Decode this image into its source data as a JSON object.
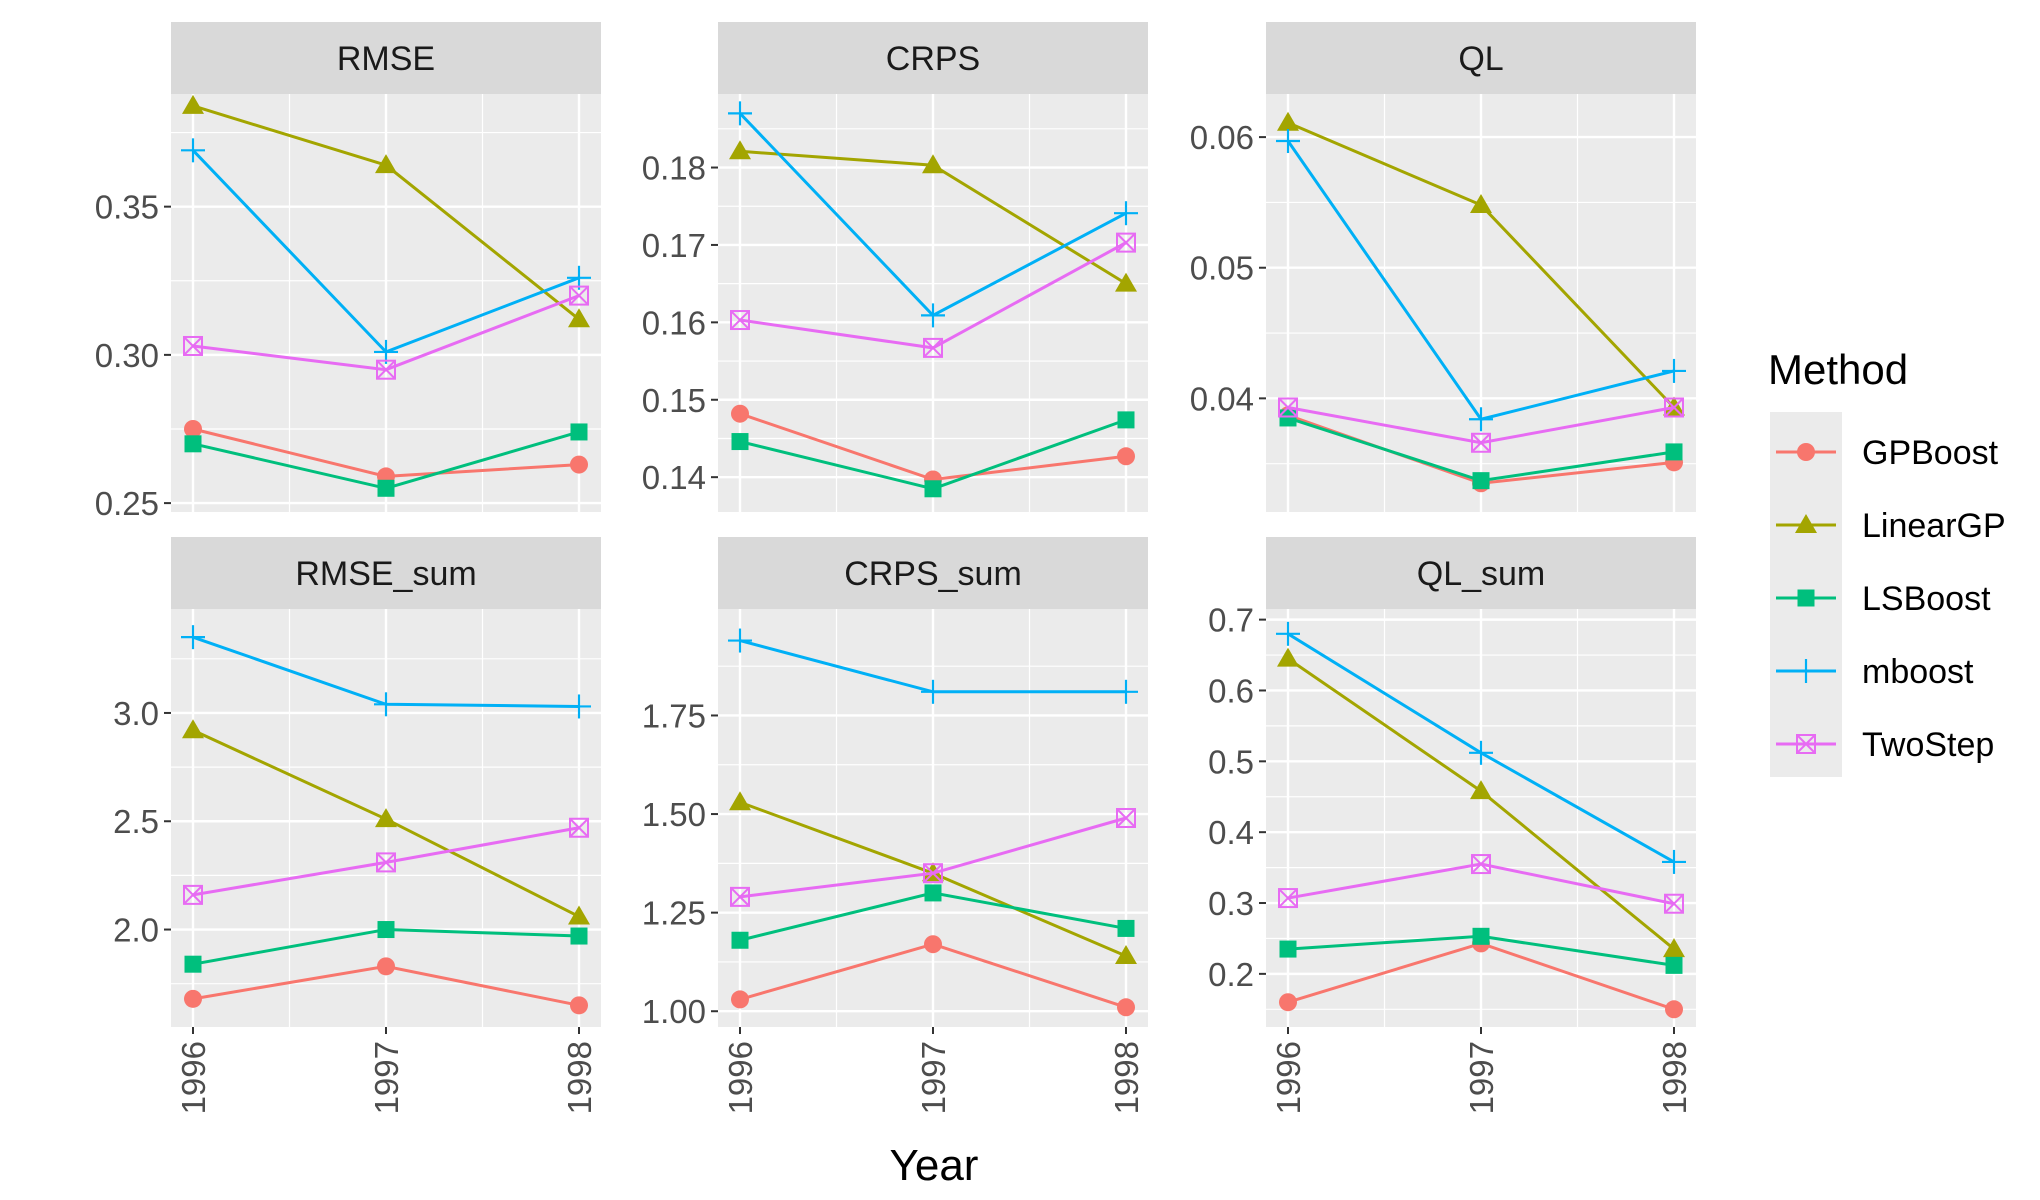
{
  "chart_data": {
    "type": "line",
    "x": [
      "1996",
      "1997",
      "1998"
    ],
    "xlabel": "Year",
    "legend": {
      "title": "Method",
      "position": "right",
      "entries": [
        "GPBoost",
        "LinearGP",
        "LSBoost",
        "mboost",
        "TwoStep"
      ]
    },
    "colors": {
      "GPBoost": "#F8766D",
      "LinearGP": "#A3A500",
      "LSBoost": "#00BF7D",
      "mboost": "#00B0F6",
      "TwoStep": "#E76BF3",
      "panel_bg": "#EBEBEB",
      "strip_bg": "#D9D9D9",
      "grid": "#FFFFFF"
    },
    "panels": [
      {
        "title": "RMSE",
        "ylim": [
          0.247,
          0.388
        ],
        "yticks": [
          "0.25",
          "0.30",
          "0.35"
        ],
        "ytick_values": [
          0.25,
          0.3,
          0.35
        ],
        "series": [
          {
            "name": "GPBoost",
            "values": [
              0.275,
              0.259,
              0.263
            ]
          },
          {
            "name": "LinearGP",
            "values": [
              0.384,
              0.364,
              0.312
            ]
          },
          {
            "name": "LSBoost",
            "values": [
              0.27,
              0.255,
              0.274
            ]
          },
          {
            "name": "mboost",
            "values": [
              0.369,
              0.301,
              0.326
            ]
          },
          {
            "name": "TwoStep",
            "values": [
              0.303,
              0.295,
              0.32
            ]
          }
        ]
      },
      {
        "title": "CRPS",
        "ylim": [
          0.1355,
          0.1895
        ],
        "yticks": [
          "0.14",
          "0.15",
          "0.16",
          "0.17",
          "0.18"
        ],
        "ytick_values": [
          0.14,
          0.15,
          0.16,
          0.17,
          0.18
        ],
        "series": [
          {
            "name": "GPBoost",
            "values": [
              0.1482,
              0.1397,
              0.1427
            ]
          },
          {
            "name": "LinearGP",
            "values": [
              0.1821,
              0.1803,
              0.165
            ]
          },
          {
            "name": "LSBoost",
            "values": [
              0.1446,
              0.1385,
              0.1474
            ]
          },
          {
            "name": "mboost",
            "values": [
              0.187,
              0.1609,
              0.1741
            ]
          },
          {
            "name": "TwoStep",
            "values": [
              0.1603,
              0.1567,
              0.1703
            ]
          }
        ]
      },
      {
        "title": "QL",
        "ylim": [
          0.0313,
          0.0633
        ],
        "yticks": [
          "0.04",
          "0.05",
          "0.06"
        ],
        "ytick_values": [
          0.04,
          0.05,
          0.06
        ],
        "series": [
          {
            "name": "GPBoost",
            "values": [
              0.0387,
              0.0335,
              0.0351
            ]
          },
          {
            "name": "LinearGP",
            "values": [
              0.0611,
              0.0548,
              0.0393
            ]
          },
          {
            "name": "LSBoost",
            "values": [
              0.0385,
              0.0337,
              0.0359
            ]
          },
          {
            "name": "mboost",
            "values": [
              0.0597,
              0.0384,
              0.0421
            ]
          },
          {
            "name": "TwoStep",
            "values": [
              0.0393,
              0.0366,
              0.0393
            ]
          }
        ]
      },
      {
        "title": "RMSE_sum",
        "ylim": [
          1.55,
          3.48
        ],
        "yticks": [
          "2.0",
          "2.5",
          "3.0"
        ],
        "ytick_values": [
          2.0,
          2.5,
          3.0
        ],
        "series": [
          {
            "name": "GPBoost",
            "values": [
              1.68,
              1.83,
              1.65
            ]
          },
          {
            "name": "LinearGP",
            "values": [
              2.92,
              2.51,
              2.06
            ]
          },
          {
            "name": "LSBoost",
            "values": [
              1.84,
              2.0,
              1.97
            ]
          },
          {
            "name": "mboost",
            "values": [
              3.35,
              3.04,
              3.03
            ]
          },
          {
            "name": "TwoStep",
            "values": [
              2.16,
              2.31,
              2.47
            ]
          }
        ]
      },
      {
        "title": "CRPS_sum",
        "ylim": [
          0.96,
          2.02
        ],
        "yticks": [
          "1.00",
          "1.25",
          "1.50",
          "1.75"
        ],
        "ytick_values": [
          1.0,
          1.25,
          1.5,
          1.75
        ],
        "series": [
          {
            "name": "GPBoost",
            "values": [
              1.03,
              1.17,
              1.01
            ]
          },
          {
            "name": "LinearGP",
            "values": [
              1.53,
              1.35,
              1.14
            ]
          },
          {
            "name": "LSBoost",
            "values": [
              1.18,
              1.3,
              1.21
            ]
          },
          {
            "name": "mboost",
            "values": [
              1.94,
              1.81,
              1.81
            ]
          },
          {
            "name": "TwoStep",
            "values": [
              1.29,
              1.35,
              1.49
            ]
          }
        ]
      },
      {
        "title": "QL_sum",
        "ylim": [
          0.125,
          0.715
        ],
        "yticks": [
          "0.2",
          "0.3",
          "0.4",
          "0.5",
          "0.6",
          "0.7"
        ],
        "ytick_values": [
          0.2,
          0.3,
          0.4,
          0.5,
          0.6,
          0.7
        ],
        "series": [
          {
            "name": "GPBoost",
            "values": [
              0.16,
              0.243,
              0.15
            ]
          },
          {
            "name": "LinearGP",
            "values": [
              0.645,
              0.458,
              0.235
            ]
          },
          {
            "name": "LSBoost",
            "values": [
              0.235,
              0.253,
              0.212
            ]
          },
          {
            "name": "mboost",
            "values": [
              0.68,
              0.512,
              0.358
            ]
          },
          {
            "name": "TwoStep",
            "values": [
              0.307,
              0.355,
              0.299
            ]
          }
        ]
      }
    ]
  }
}
